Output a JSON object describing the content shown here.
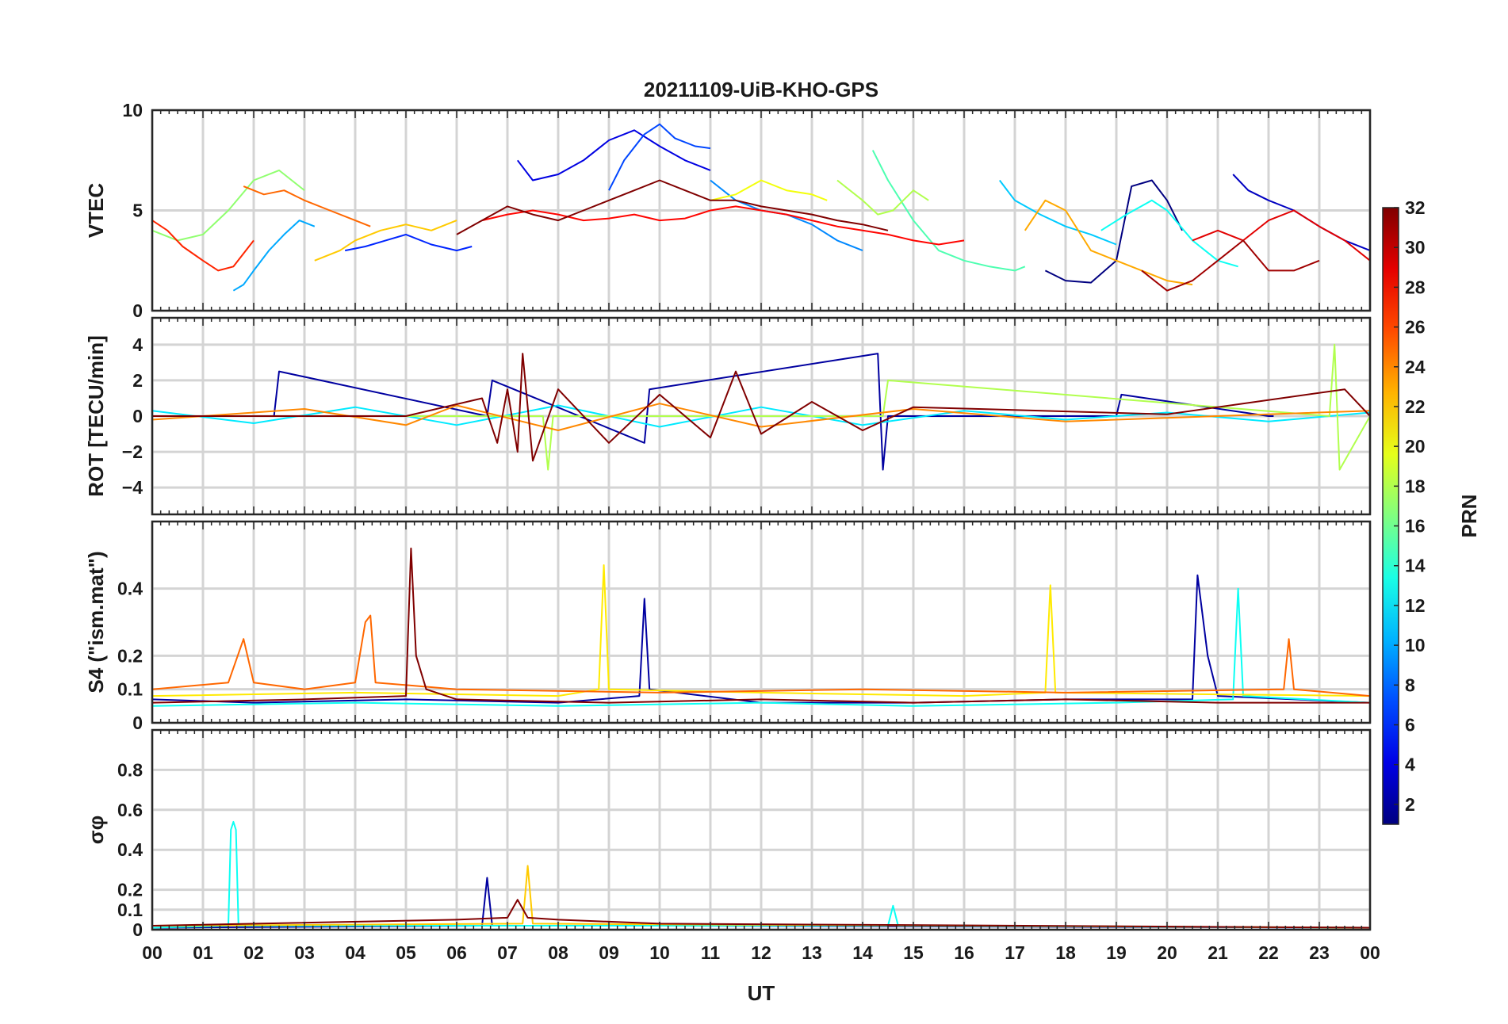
{
  "chart_data": {
    "type": "line",
    "title": "20211109-UiB-KHO-GPS",
    "xlabel": "UT",
    "x_tick_labels": [
      "00",
      "01",
      "02",
      "03",
      "04",
      "05",
      "06",
      "07",
      "08",
      "09",
      "10",
      "11",
      "12",
      "13",
      "14",
      "15",
      "16",
      "17",
      "18",
      "19",
      "20",
      "21",
      "22",
      "23",
      "00"
    ],
    "xlim_hours": [
      0,
      24
    ],
    "grid": true,
    "colorbar": {
      "label": "PRN",
      "range": [
        1,
        32
      ],
      "tick_labels": [
        "2",
        "4",
        "6",
        "8",
        "10",
        "12",
        "14",
        "16",
        "18",
        "20",
        "22",
        "24",
        "26",
        "28",
        "30",
        "32"
      ],
      "colormap": "jet",
      "placement": "right"
    },
    "panels": [
      {
        "id": "vtec",
        "ylabel": "VTEC",
        "ylim": [
          0,
          10
        ],
        "y_ticks": [
          0,
          5,
          10
        ],
        "y_tick_labels": [
          "0",
          "5",
          "10"
        ],
        "series": [
          {
            "prn": 1,
            "x": [
              17.6,
              18.0,
              18.5,
              19.0,
              19.3,
              19.7,
              20.0,
              20.3
            ],
            "y": [
              2.0,
              1.5,
              1.4,
              2.5,
              6.2,
              6.5,
              5.5,
              4.0
            ]
          },
          {
            "prn": 3,
            "x": [
              21.3,
              21.6,
              22.0,
              22.5,
              23.0,
              23.5,
              24.0
            ],
            "y": [
              6.8,
              6.0,
              5.5,
              5.0,
              4.2,
              3.5,
              3.0
            ]
          },
          {
            "prn": 4,
            "x": [
              7.2,
              7.5,
              8.0,
              8.5,
              9.0,
              9.5,
              10.0,
              10.5,
              11.0
            ],
            "y": [
              7.5,
              6.5,
              6.8,
              7.5,
              8.5,
              9.0,
              8.2,
              7.5,
              7.0
            ]
          },
          {
            "prn": 6,
            "x": [
              3.8,
              4.2,
              4.6,
              5.0,
              5.5,
              6.0,
              6.3
            ],
            "y": [
              3.0,
              3.2,
              3.5,
              3.8,
              3.3,
              3.0,
              3.2
            ]
          },
          {
            "prn": 7,
            "x": [
              9.0,
              9.3,
              9.7,
              10.0,
              10.3,
              10.7,
              11.0
            ],
            "y": [
              6.0,
              7.5,
              8.8,
              9.3,
              8.6,
              8.2,
              8.1
            ]
          },
          {
            "prn": 9,
            "x": [
              11.0,
              11.5,
              12.0,
              12.5,
              13.0,
              13.5,
              14.0
            ],
            "y": [
              6.5,
              5.5,
              5.0,
              4.8,
              4.3,
              3.5,
              3.0
            ]
          },
          {
            "prn": 10,
            "x": [
              1.6,
              1.8,
              2.0,
              2.3,
              2.6,
              2.9,
              3.2
            ],
            "y": [
              1.0,
              1.3,
              2.0,
              3.0,
              3.8,
              4.5,
              4.2
            ]
          },
          {
            "prn": 11,
            "x": [
              16.7,
              17.0,
              17.5,
              18.0,
              18.5,
              19.0
            ],
            "y": [
              6.5,
              5.5,
              4.8,
              4.2,
              3.8,
              3.3
            ]
          },
          {
            "prn": 13,
            "x": [
              18.7,
              19.2,
              19.7,
              20.0,
              20.5,
              21.0,
              21.4
            ],
            "y": [
              4.0,
              4.8,
              5.5,
              5.0,
              3.5,
              2.5,
              2.2
            ]
          },
          {
            "prn": 15,
            "x": [
              14.2,
              14.5,
              15.0,
              15.5,
              16.0,
              16.5,
              17.0,
              17.2
            ],
            "y": [
              8.0,
              6.5,
              4.5,
              3.0,
              2.5,
              2.2,
              2.0,
              2.2
            ]
          },
          {
            "prn": 17,
            "x": [
              0.0,
              0.5,
              1.0,
              1.5,
              2.0,
              2.5,
              3.0
            ],
            "y": [
              4.0,
              3.5,
              3.8,
              5.0,
              6.5,
              7.0,
              6.0
            ]
          },
          {
            "prn": 18,
            "x": [
              13.5,
              14.0,
              14.3,
              14.6,
              15.0,
              15.3
            ],
            "y": [
              6.5,
              5.5,
              4.8,
              5.0,
              6.0,
              5.5
            ]
          },
          {
            "prn": 20,
            "x": [
              11.0,
              11.5,
              12.0,
              12.5,
              13.0,
              13.3
            ],
            "y": [
              5.5,
              5.8,
              6.5,
              6.0,
              5.8,
              5.5
            ]
          },
          {
            "prn": 22,
            "x": [
              3.2,
              3.7,
              4.0,
              4.5,
              5.0,
              5.5,
              6.0
            ],
            "y": [
              2.5,
              3.0,
              3.5,
              4.0,
              4.3,
              4.0,
              4.5
            ]
          },
          {
            "prn": 23,
            "x": [
              17.2,
              17.6,
              18.0,
              18.5,
              19.0,
              19.5,
              20.0,
              20.5
            ],
            "y": [
              4.0,
              5.5,
              5.0,
              3.0,
              2.5,
              2.0,
              1.5,
              1.3
            ]
          },
          {
            "prn": 25,
            "x": [
              1.8,
              2.2,
              2.6,
              3.0,
              3.5,
              4.0,
              4.3
            ],
            "y": [
              6.2,
              5.8,
              6.0,
              5.5,
              5.0,
              4.5,
              4.2
            ]
          },
          {
            "prn": 27,
            "x": [
              0.0,
              0.3,
              0.6,
              1.0,
              1.3,
              1.6,
              2.0
            ],
            "y": [
              4.5,
              4.0,
              3.2,
              2.5,
              2.0,
              2.2,
              3.5
            ]
          },
          {
            "prn": 28,
            "x": [
              6.5,
              7.0,
              7.5,
              8.0,
              8.5,
              9.0,
              9.5,
              10.0,
              10.5,
              11.0,
              11.5,
              12.0,
              12.5,
              13.0,
              13.5,
              14.0,
              14.5,
              15.0,
              15.5,
              16.0
            ],
            "y": [
              4.5,
              4.8,
              5.0,
              4.8,
              4.5,
              4.6,
              4.8,
              4.5,
              4.6,
              5.0,
              5.2,
              5.0,
              4.8,
              4.5,
              4.2,
              4.0,
              3.8,
              3.5,
              3.3,
              3.5
            ]
          },
          {
            "prn": 29,
            "x": [
              20.5,
              21.0,
              21.5,
              22.0,
              22.5,
              23.0,
              23.5,
              24.0
            ],
            "y": [
              3.5,
              4.0,
              3.5,
              4.5,
              5.0,
              4.2,
              3.5,
              2.5
            ]
          },
          {
            "prn": 31,
            "x": [
              19.5,
              20.0,
              20.5,
              21.0,
              21.5,
              22.0,
              22.5,
              23.0
            ],
            "y": [
              2.0,
              1.0,
              1.5,
              2.5,
              3.5,
              2.0,
              2.0,
              2.5
            ]
          },
          {
            "prn": 32,
            "x": [
              6.0,
              6.5,
              7.0,
              7.5,
              8.0,
              8.5,
              9.0,
              9.5,
              10.0,
              10.5,
              11.0,
              11.5,
              12.0,
              12.5,
              13.0,
              13.5,
              14.0,
              14.5
            ],
            "y": [
              3.8,
              4.5,
              5.2,
              4.8,
              4.5,
              5.0,
              5.5,
              6.0,
              6.5,
              6.0,
              5.5,
              5.5,
              5.2,
              5.0,
              4.8,
              4.5,
              4.3,
              4.0
            ]
          }
        ]
      },
      {
        "id": "rot",
        "ylabel": "ROT [TECU/min]",
        "ylim": [
          -5.5,
          5.5
        ],
        "y_ticks": [
          -4,
          -2,
          0,
          2,
          4
        ],
        "y_tick_labels": [
          "−4",
          "−2",
          "0",
          "2",
          "4"
        ],
        "series": [
          {
            "prn": 2,
            "x": [
              0.0,
              2.4,
              2.5,
              6.6,
              6.7,
              9.7,
              9.8,
              14.3,
              14.4,
              14.5,
              19.0,
              19.1,
              22.0,
              22.1
            ],
            "y": [
              0.0,
              0.0,
              2.5,
              0.0,
              2.0,
              -1.5,
              1.5,
              3.5,
              -3.0,
              0.0,
              0.0,
              1.2,
              0.0,
              0.0
            ]
          },
          {
            "prn": 12,
            "x": [
              0.0,
              2.0,
              4.0,
              6.0,
              8.0,
              10.0,
              12.0,
              14.0,
              16.0,
              18.0,
              20.0,
              22.0,
              24.0
            ],
            "y": [
              0.3,
              -0.4,
              0.5,
              -0.5,
              0.6,
              -0.6,
              0.5,
              -0.5,
              0.3,
              -0.2,
              0.2,
              -0.3,
              0.2
            ]
          },
          {
            "prn": 18,
            "x": [
              0.0,
              7.7,
              7.8,
              7.9,
              14.4,
              14.5,
              23.2,
              23.3,
              23.4,
              24.0
            ],
            "y": [
              0.0,
              0.0,
              -3.0,
              0.0,
              0.0,
              2.0,
              0.0,
              4.0,
              -3.0,
              0.0
            ]
          },
          {
            "prn": 24,
            "x": [
              0.0,
              3.0,
              5.0,
              6.0,
              8.0,
              10.0,
              12.0,
              15.0,
              18.0,
              24.0
            ],
            "y": [
              -0.2,
              0.4,
              -0.5,
              0.6,
              -0.8,
              0.7,
              -0.6,
              0.4,
              -0.3,
              0.3
            ]
          },
          {
            "prn": 32,
            "x": [
              0.0,
              5.0,
              6.5,
              6.8,
              7.0,
              7.2,
              7.3,
              7.5,
              8.0,
              9.0,
              10.0,
              11.0,
              11.5,
              12.0,
              13.0,
              14.0,
              15.0,
              20.0,
              23.5,
              24.0
            ],
            "y": [
              0.0,
              0.0,
              1.0,
              -1.5,
              1.5,
              -2.0,
              3.5,
              -2.5,
              1.5,
              -1.5,
              1.2,
              -1.2,
              2.5,
              -1.0,
              0.8,
              -0.8,
              0.5,
              0.1,
              1.5,
              0.0
            ]
          }
        ]
      },
      {
        "id": "s4",
        "ylabel": "S4 (\"ism.mat\")",
        "ylim": [
          0,
          0.6
        ],
        "y_ticks": [
          0,
          0.1,
          0.2,
          0.4
        ],
        "y_tick_labels": [
          "0",
          "0.1",
          "0.2",
          "0.4"
        ],
        "series": [
          {
            "prn": 2,
            "x": [
              0.0,
              2.0,
              5.0,
              8.0,
              9.6,
              9.7,
              9.8,
              12.0,
              15.0,
              18.0,
              20.5,
              20.6,
              20.8,
              21.0,
              24.0
            ],
            "y": [
              0.07,
              0.06,
              0.07,
              0.06,
              0.08,
              0.37,
              0.1,
              0.06,
              0.06,
              0.07,
              0.07,
              0.44,
              0.2,
              0.08,
              0.06
            ]
          },
          {
            "prn": 13,
            "x": [
              0.0,
              4.0,
              8.0,
              12.0,
              15.0,
              19.0,
              21.3,
              21.4,
              21.5,
              24.0
            ],
            "y": [
              0.05,
              0.06,
              0.05,
              0.06,
              0.05,
              0.06,
              0.07,
              0.4,
              0.08,
              0.06
            ]
          },
          {
            "prn": 21,
            "x": [
              0.0,
              4.0,
              8.0,
              8.8,
              8.9,
              9.0,
              12.0,
              16.0,
              17.6,
              17.7,
              17.8,
              24.0
            ],
            "y": [
              0.08,
              0.09,
              0.08,
              0.1,
              0.47,
              0.1,
              0.09,
              0.08,
              0.09,
              0.41,
              0.09,
              0.08
            ]
          },
          {
            "prn": 25,
            "x": [
              0.0,
              1.5,
              1.8,
              2.0,
              3.0,
              4.0,
              4.2,
              4.3,
              4.4,
              6.0,
              10.0,
              14.0,
              18.0,
              22.3,
              22.4,
              22.5,
              24.0
            ],
            "y": [
              0.1,
              0.12,
              0.25,
              0.12,
              0.1,
              0.12,
              0.3,
              0.32,
              0.12,
              0.1,
              0.09,
              0.1,
              0.09,
              0.1,
              0.25,
              0.1,
              0.08
            ]
          },
          {
            "prn": 32,
            "x": [
              0.0,
              3.0,
              5.0,
              5.1,
              5.2,
              5.4,
              6.0,
              9.0,
              12.0,
              15.0,
              18.0,
              21.0,
              24.0
            ],
            "y": [
              0.06,
              0.07,
              0.08,
              0.52,
              0.2,
              0.1,
              0.07,
              0.06,
              0.07,
              0.06,
              0.07,
              0.06,
              0.06
            ]
          }
        ]
      },
      {
        "id": "sigma_phi",
        "ylabel": "σφ",
        "ylim": [
          0,
          1
        ],
        "y_ticks": [
          0,
          0.1,
          0.2,
          0.4,
          0.6,
          0.8
        ],
        "y_tick_labels": [
          "0",
          "0.1",
          "0.2",
          "0.4",
          "0.6",
          "0.8"
        ],
        "series": [
          {
            "prn": 2,
            "x": [
              0.0,
              6.5,
              6.6,
              6.7,
              10.0,
              24.0
            ],
            "y": [
              0.01,
              0.02,
              0.26,
              0.02,
              0.02,
              0.01
            ]
          },
          {
            "prn": 13,
            "x": [
              0.0,
              1.5,
              1.55,
              1.6,
              1.65,
              1.7,
              3.0,
              14.5,
              14.6,
              14.7,
              24.0
            ],
            "y": [
              0.01,
              0.02,
              0.5,
              0.54,
              0.5,
              0.02,
              0.02,
              0.02,
              0.12,
              0.02,
              0.01
            ]
          },
          {
            "prn": 22,
            "x": [
              0.0,
              7.3,
              7.4,
              7.5,
              24.0
            ],
            "y": [
              0.02,
              0.03,
              0.32,
              0.03,
              0.01
            ]
          },
          {
            "prn": 32,
            "x": [
              0.0,
              6.0,
              7.0,
              7.2,
              7.4,
              8.0,
              10.0,
              24.0
            ],
            "y": [
              0.02,
              0.05,
              0.06,
              0.15,
              0.06,
              0.05,
              0.03,
              0.01
            ]
          }
        ]
      }
    ]
  }
}
